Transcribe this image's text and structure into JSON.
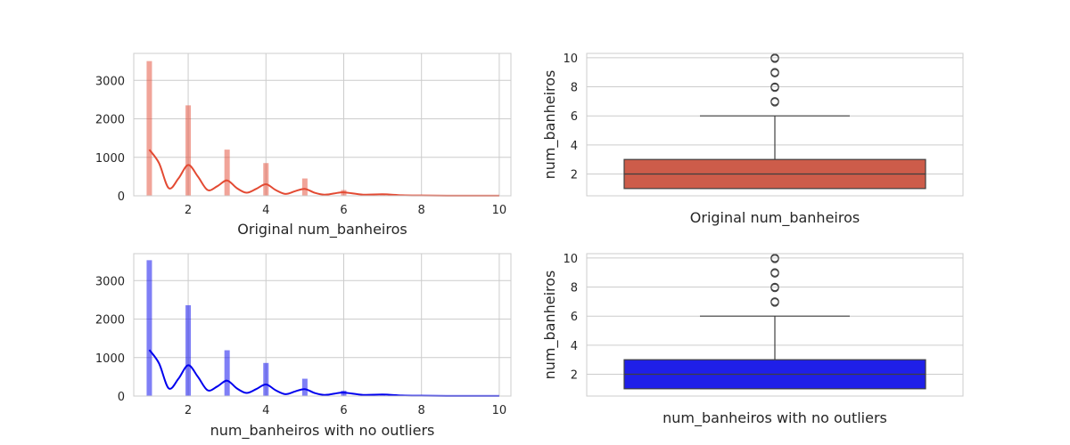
{
  "chart_data": [
    {
      "type": "bar",
      "subtype": "histogram-with-kde",
      "xlabel": "Original num_banheiros",
      "ylabel": "",
      "color": "#e34a33",
      "xlim": [
        0.6,
        10.3
      ],
      "ylim": [
        0,
        3700
      ],
      "xticks": [
        2,
        4,
        6,
        8,
        10
      ],
      "yticks": [
        0,
        1000,
        2000,
        3000
      ],
      "grid": true,
      "bins": [
        {
          "x": 1,
          "count": 3500
        },
        {
          "x": 2,
          "count": 2350
        },
        {
          "x": 3,
          "count": 1200
        },
        {
          "x": 4,
          "count": 850
        },
        {
          "x": 5,
          "count": 450
        },
        {
          "x": 6,
          "count": 150
        },
        {
          "x": 7,
          "count": 25
        },
        {
          "x": 8,
          "count": 15
        },
        {
          "x": 9,
          "count": 5
        },
        {
          "x": 10,
          "count": 3
        }
      ],
      "kde": {
        "x": [
          1.0,
          1.25,
          1.5,
          1.75,
          2.0,
          2.25,
          2.5,
          2.75,
          3.0,
          3.25,
          3.5,
          3.75,
          4.0,
          4.25,
          4.5,
          4.75,
          5.0,
          5.25,
          5.5,
          5.75,
          6.0,
          6.5,
          7.0,
          7.5,
          8.0,
          9.0,
          10.0
        ],
        "y": [
          1200,
          850,
          200,
          450,
          800,
          500,
          150,
          250,
          400,
          200,
          80,
          180,
          300,
          150,
          50,
          120,
          180,
          80,
          30,
          60,
          90,
          30,
          40,
          15,
          8,
          3,
          2
        ]
      }
    },
    {
      "type": "box",
      "xlabel": "Original num_banheiros",
      "ylabel": "num_banheiros",
      "color": "#cd5c4a",
      "ylim": [
        0.5,
        10.3
      ],
      "yticks": [
        2,
        4,
        6,
        8,
        10
      ],
      "grid": true,
      "box": {
        "whisker_low": 1,
        "q1": 1,
        "median": 2,
        "q3": 3,
        "whisker_high": 6
      },
      "outliers": [
        7,
        8,
        9,
        10
      ]
    },
    {
      "type": "bar",
      "subtype": "histogram-with-kde",
      "xlabel": "num_banheiros with no outliers",
      "ylabel": "",
      "color": "#0000ee",
      "xlim": [
        0.6,
        10.3
      ],
      "ylim": [
        0,
        3700
      ],
      "xticks": [
        2,
        4,
        6,
        8,
        10
      ],
      "yticks": [
        0,
        1000,
        2000,
        3000
      ],
      "grid": true,
      "bins": [
        {
          "x": 1,
          "count": 3530
        },
        {
          "x": 2,
          "count": 2360
        },
        {
          "x": 3,
          "count": 1190
        },
        {
          "x": 4,
          "count": 860
        },
        {
          "x": 5,
          "count": 450
        },
        {
          "x": 6,
          "count": 140
        },
        {
          "x": 7,
          "count": 25
        },
        {
          "x": 8,
          "count": 15
        },
        {
          "x": 9,
          "count": 5
        },
        {
          "x": 10,
          "count": 3
        }
      ],
      "kde": {
        "x": [
          1.0,
          1.25,
          1.5,
          1.75,
          2.0,
          2.25,
          2.5,
          2.75,
          3.0,
          3.25,
          3.5,
          3.75,
          4.0,
          4.25,
          4.5,
          4.75,
          5.0,
          5.25,
          5.5,
          5.75,
          6.0,
          6.5,
          7.0,
          7.5,
          8.0,
          9.0,
          10.0
        ],
        "y": [
          1200,
          850,
          200,
          450,
          800,
          500,
          150,
          250,
          400,
          200,
          80,
          180,
          300,
          150,
          50,
          120,
          180,
          80,
          30,
          60,
          90,
          30,
          40,
          15,
          8,
          3,
          2
        ]
      }
    },
    {
      "type": "box",
      "xlabel": "num_banheiros with no outliers",
      "ylabel": "num_banheiros",
      "color": "#1f1fe8",
      "ylim": [
        0.5,
        10.3
      ],
      "yticks": [
        2,
        4,
        6,
        8,
        10
      ],
      "grid": true,
      "box": {
        "whisker_low": 1,
        "q1": 1,
        "median": 2,
        "q3": 3,
        "whisker_high": 6
      },
      "outliers": [
        7,
        8,
        9,
        10
      ]
    }
  ]
}
